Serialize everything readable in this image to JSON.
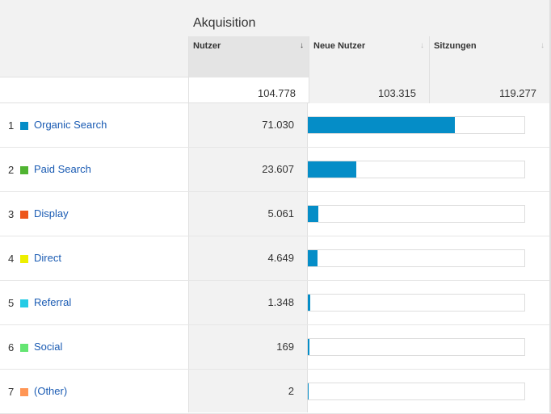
{
  "table": {
    "group_title": "Akquisition",
    "columns": [
      {
        "label": "Nutzer",
        "sort": "↓",
        "active": true
      },
      {
        "label": "Neue Nutzer",
        "sort": "↓",
        "active": false
      },
      {
        "label": "Sitzungen",
        "sort": "↓",
        "active": false
      }
    ],
    "totals": [
      "104.778",
      "103.315",
      "119.277"
    ],
    "rows": [
      {
        "rank": "1",
        "label": "Organic Search",
        "color": "#058dc7",
        "value": "71.030",
        "share": 0.6779
      },
      {
        "rank": "2",
        "label": "Paid Search",
        "color": "#50b432",
        "value": "23.607",
        "share": 0.2253
      },
      {
        "rank": "3",
        "label": "Display",
        "color": "#ed561b",
        "value": "5.061",
        "share": 0.0483
      },
      {
        "rank": "4",
        "label": "Direct",
        "color": "#edef00",
        "value": "4.649",
        "share": 0.0444
      },
      {
        "rank": "5",
        "label": "Referral",
        "color": "#24cbe5",
        "value": "1.348",
        "share": 0.0129
      },
      {
        "rank": "6",
        "label": "Social",
        "color": "#64e572",
        "value": "169",
        "share": 0.0016
      },
      {
        "rank": "7",
        "label": "(Other)",
        "color": "#ff9655",
        "value": "2",
        "share": 0.0
      }
    ]
  }
}
